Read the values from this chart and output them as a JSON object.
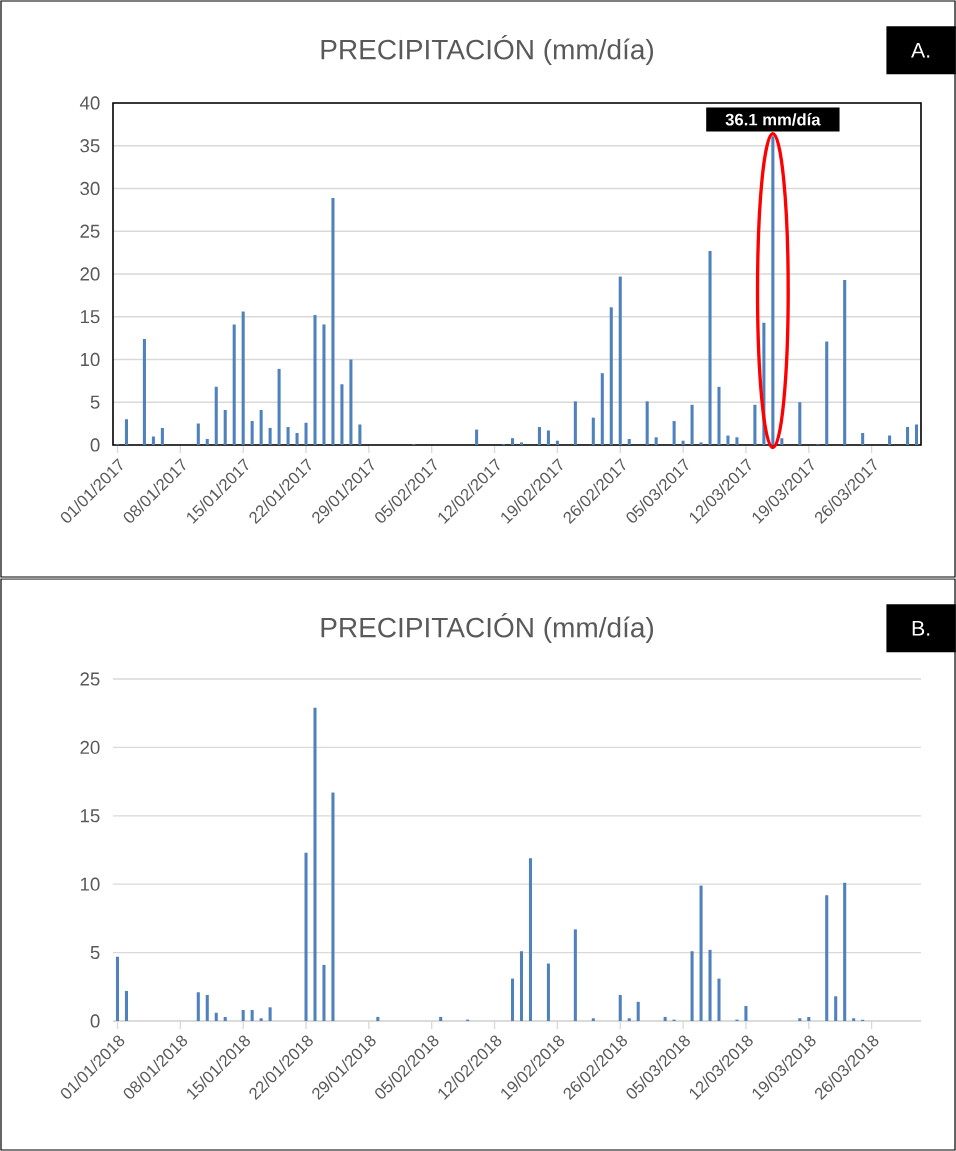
{
  "chart_data": [
    {
      "type": "bar",
      "title": "PRECIPITACIÓN (mm/día)",
      "color": "#4f81bd",
      "ylim": [
        0,
        40
      ],
      "yticks": [
        0,
        5,
        10,
        15,
        20,
        25,
        30,
        35,
        40
      ],
      "grid": "y",
      "annotations": [
        "A."
      ],
      "categories": [
        "01/01/2017",
        null,
        null,
        null,
        null,
        null,
        null,
        "08/01/2017",
        null,
        null,
        null,
        null,
        null,
        null,
        "15/01/2017",
        null,
        null,
        null,
        null,
        null,
        null,
        "22/01/2017",
        null,
        null,
        null,
        null,
        null,
        null,
        "29/01/2017",
        null,
        null,
        null,
        null,
        null,
        null,
        "05/02/2017",
        null,
        null,
        null,
        null,
        null,
        null,
        "12/02/2017",
        null,
        null,
        null,
        null,
        null,
        null,
        "19/02/2017",
        null,
        null,
        null,
        null,
        null,
        null,
        "26/02/2017",
        null,
        null,
        null,
        null,
        null,
        null,
        "05/03/2017",
        null,
        null,
        null,
        null,
        null,
        null,
        "12/03/2017",
        null,
        null,
        null,
        null,
        null,
        null,
        "19/03/2017",
        null,
        null,
        null,
        null,
        null,
        null,
        "26/03/2017",
        null,
        null,
        null,
        null,
        null
      ],
      "values": [
        0.1,
        3.0,
        0,
        12.4,
        1.0,
        2.0,
        0,
        0,
        0,
        2.5,
        0.7,
        6.8,
        4.1,
        14.1,
        15.6,
        2.8,
        4.1,
        2.0,
        8.9,
        2.1,
        1.4,
        2.6,
        15.2,
        14.1,
        28.9,
        7.1,
        10.0,
        2.4,
        0,
        0,
        0,
        0,
        0,
        0.1,
        0,
        0,
        0,
        0,
        0,
        0,
        1.8,
        0,
        0,
        0.1,
        0.8,
        0.3,
        0,
        2.1,
        1.7,
        0.5,
        0,
        5.1,
        0,
        3.2,
        8.4,
        16.1,
        19.7,
        0.7,
        0,
        5.1,
        0.9,
        0,
        2.8,
        0.5,
        4.7,
        0.3,
        22.7,
        6.8,
        1.1,
        0.9,
        0,
        4.7,
        14.3,
        36.1,
        0.8,
        0,
        5.0,
        0,
        0.1,
        12.1,
        0,
        19.3,
        0,
        1.4,
        0,
        0,
        1.1,
        0,
        2.1,
        2.4
      ],
      "value_labels": [
        null,
        null,
        null,
        null,
        null,
        null,
        null,
        null,
        null,
        null,
        null,
        null,
        null,
        null,
        null,
        null,
        null,
        null,
        null,
        null,
        null,
        null,
        null,
        null,
        null,
        null,
        null,
        null,
        null,
        null,
        null,
        null,
        null,
        null,
        null,
        null,
        null,
        null,
        null,
        null,
        null,
        null,
        null,
        null,
        null,
        null,
        null,
        null,
        null,
        null,
        null,
        null,
        null,
        null,
        null,
        null,
        null,
        null,
        null,
        null,
        null,
        null,
        null,
        null,
        null,
        null,
        null,
        null,
        null,
        null,
        null,
        null,
        null,
        "36.1 mm/día",
        null,
        null,
        null,
        null,
        null,
        null,
        null,
        null,
        null,
        null,
        null,
        null,
        null,
        null,
        null,
        null
      ]
    },
    {
      "type": "bar",
      "title": "PRECIPITACIÓN (mm/día)",
      "color": "#4f81bd",
      "ylim": [
        0,
        25
      ],
      "yticks": [
        0,
        5,
        10,
        15,
        20,
        25
      ],
      "grid": "y",
      "annotations": [
        "B."
      ],
      "categories": [
        "01/01/2018",
        null,
        null,
        null,
        null,
        null,
        null,
        "08/01/2018",
        null,
        null,
        null,
        null,
        null,
        null,
        "15/01/2018",
        null,
        null,
        null,
        null,
        null,
        null,
        "22/01/2018",
        null,
        null,
        null,
        null,
        null,
        null,
        "29/01/2018",
        null,
        null,
        null,
        null,
        null,
        null,
        "05/02/2018",
        null,
        null,
        null,
        null,
        null,
        null,
        "12/02/2018",
        null,
        null,
        null,
        null,
        null,
        null,
        "19/02/2018",
        null,
        null,
        null,
        null,
        null,
        null,
        "26/02/2018",
        null,
        null,
        null,
        null,
        null,
        null,
        "05/03/2018",
        null,
        null,
        null,
        null,
        null,
        null,
        "12/03/2018",
        null,
        null,
        null,
        null,
        null,
        null,
        "19/03/2018",
        null,
        null,
        null,
        null,
        null,
        null,
        "26/03/2018",
        null,
        null,
        null,
        null,
        null
      ],
      "values": [
        4.7,
        2.2,
        0,
        0,
        0,
        0,
        0,
        0,
        0,
        2.1,
        1.9,
        0.6,
        0.3,
        0,
        0.8,
        0.8,
        0.2,
        1.0,
        0,
        0,
        0,
        12.3,
        22.9,
        4.1,
        16.7,
        0,
        0,
        0,
        0,
        0.3,
        0,
        0,
        0,
        0,
        0,
        0,
        0.3,
        0,
        0,
        0.1,
        0,
        0,
        0,
        0,
        3.1,
        5.1,
        11.9,
        0,
        4.2,
        0,
        0,
        6.7,
        0,
        0.2,
        0,
        0,
        1.9,
        0.2,
        1.4,
        0,
        0,
        0.3,
        0.1,
        0,
        5.1,
        9.9,
        5.2,
        3.1,
        0,
        0.1,
        1.1,
        0,
        0,
        0,
        0,
        0,
        0.2,
        0.3,
        0,
        9.2,
        1.8,
        10.1,
        0.2,
        0.1,
        0,
        0,
        0,
        0,
        0,
        0
      ]
    }
  ]
}
